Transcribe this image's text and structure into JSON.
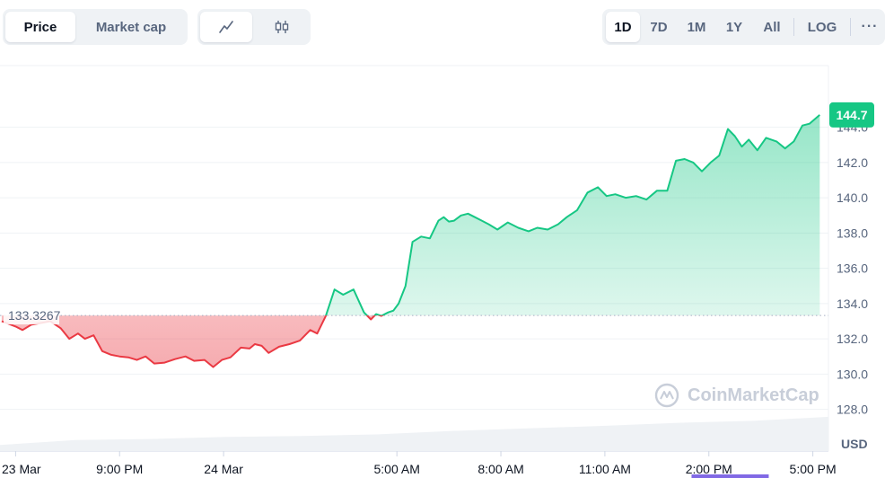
{
  "toolbar": {
    "chart_type_tabs": [
      "Price",
      "Market cap"
    ],
    "active_chart_type": "Price",
    "view_mode_icons": [
      "line-chart-icon",
      "candlestick-icon"
    ],
    "active_view_mode": "line-chart-icon",
    "ranges": [
      "1D",
      "7D",
      "1M",
      "1Y",
      "All"
    ],
    "active_range": "1D",
    "log_label": "LOG",
    "more_label": "···"
  },
  "colors": {
    "up": "#16c784",
    "down": "#ea3943",
    "grid": "#eff2f5",
    "axis_text": "#58667e",
    "volume": "#eff2f5",
    "watermark": "#c8ced9"
  },
  "watermark": "CoinMarketCap",
  "chart_data": {
    "type": "area",
    "title": "",
    "xlabel": "",
    "ylabel": "USD",
    "baseline": 133.3267,
    "baseline_label": "133.3267",
    "last_price_label": "144.7",
    "ylim": [
      126.5,
      147.5
    ],
    "y_ticks": [
      128.0,
      130.0,
      132.0,
      134.0,
      136.0,
      138.0,
      140.0,
      142.0,
      144.0
    ],
    "y_tick_labels": [
      "128.0",
      "130.0",
      "132.0",
      "134.0",
      "136.0",
      "138.0",
      "140.0",
      "142.0",
      "144.0"
    ],
    "x_tick_labels": [
      "23 Mar",
      "9:00 PM",
      "24 Mar",
      "5:00 AM",
      "8:00 AM",
      "11:00 AM",
      "2:00 PM",
      "5:00 PM"
    ],
    "x_ticks": [
      0.0,
      3.0,
      6.0,
      11.0,
      14.0,
      17.0,
      20.0,
      23.0
    ],
    "x_range": [
      -0.45,
      23.45
    ],
    "grid": true,
    "x": [
      -0.4,
      0.0,
      0.2,
      0.45,
      0.75,
      1.0,
      1.3,
      1.55,
      1.8,
      2.0,
      2.25,
      2.5,
      2.75,
      3.0,
      3.25,
      3.5,
      3.75,
      4.0,
      4.3,
      4.6,
      4.9,
      5.15,
      5.45,
      5.7,
      5.95,
      6.2,
      6.5,
      6.75,
      6.9,
      7.1,
      7.3,
      7.6,
      7.9,
      8.2,
      8.5,
      8.7,
      8.95,
      9.2,
      9.45,
      9.75,
      10.05,
      10.25,
      10.4,
      10.55,
      10.75,
      10.9,
      11.05,
      11.25,
      11.45,
      11.7,
      11.95,
      12.2,
      12.35,
      12.5,
      12.65,
      12.85,
      13.05,
      13.25,
      13.45,
      13.65,
      13.9,
      14.2,
      14.5,
      14.8,
      15.05,
      15.35,
      15.65,
      15.9,
      16.2,
      16.5,
      16.8,
      17.05,
      17.3,
      17.6,
      17.9,
      18.2,
      18.5,
      18.8,
      19.05,
      19.3,
      19.55,
      19.8,
      20.05,
      20.3,
      20.55,
      20.75,
      20.95,
      21.15,
      21.4,
      21.65,
      21.95,
      22.2,
      22.45,
      22.7,
      22.9,
      23.2
    ],
    "values": [
      133.0,
      132.7,
      132.5,
      132.8,
      132.9,
      133.0,
      132.6,
      132.0,
      132.3,
      132.0,
      132.2,
      131.3,
      131.1,
      131.0,
      130.95,
      130.8,
      131.0,
      130.6,
      130.65,
      130.85,
      131.0,
      130.75,
      130.8,
      130.4,
      130.8,
      130.95,
      131.5,
      131.45,
      131.7,
      131.6,
      131.2,
      131.55,
      131.7,
      131.9,
      132.5,
      132.3,
      133.3,
      134.8,
      134.5,
      134.8,
      133.5,
      133.1,
      133.4,
      133.3,
      133.5,
      133.6,
      134.0,
      135.0,
      137.5,
      137.8,
      137.7,
      138.7,
      138.9,
      138.65,
      138.7,
      139.0,
      139.1,
      138.9,
      138.7,
      138.5,
      138.2,
      138.6,
      138.3,
      138.1,
      138.3,
      138.2,
      138.5,
      138.9,
      139.3,
      140.3,
      140.6,
      140.1,
      140.2,
      140.0,
      140.1,
      139.9,
      140.4,
      140.4,
      142.1,
      142.2,
      142.0,
      141.5,
      142.0,
      142.4,
      143.9,
      143.5,
      142.9,
      143.3,
      142.7,
      143.4,
      143.2,
      142.8,
      143.2,
      144.1,
      144.2,
      144.7
    ],
    "volume_profile": [
      0.12,
      0.22,
      0.24,
      0.28,
      0.3,
      0.33,
      0.4,
      0.45,
      0.5,
      0.56,
      0.6,
      0.68
    ]
  }
}
